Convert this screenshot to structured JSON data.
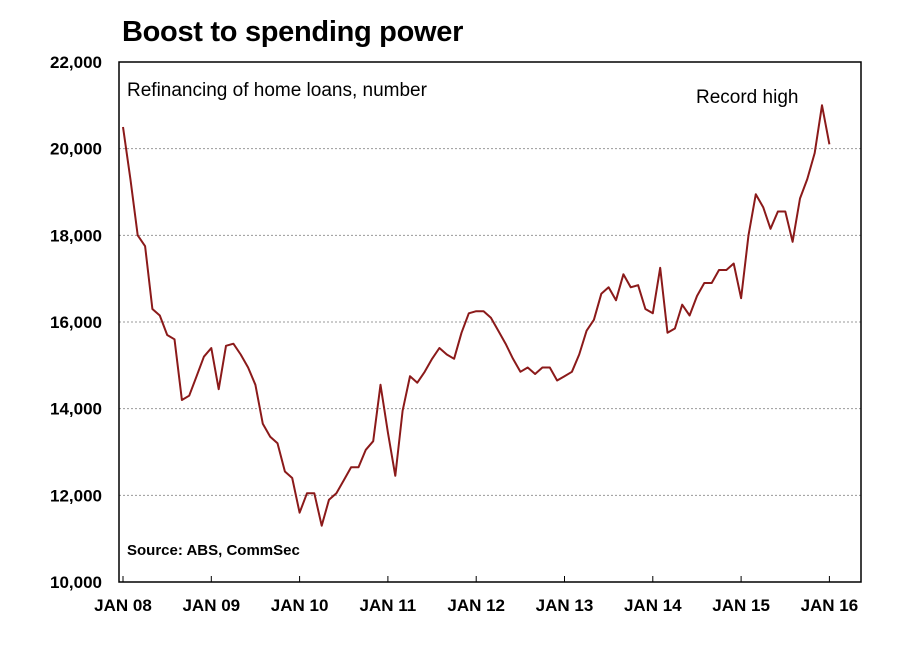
{
  "chart_data": {
    "type": "line",
    "title": "Boost to spending power",
    "subtitle": "Refinancing of home loans, number",
    "source": "Source: ABS, CommSec",
    "annotation": "Record high",
    "ylim": [
      10000,
      22000
    ],
    "yticks": [
      10000,
      12000,
      14000,
      16000,
      18000,
      20000,
      22000
    ],
    "ytick_labels": [
      "10,000",
      "12,000",
      "14,000",
      "16,000",
      "18,000",
      "20,000",
      "22,000"
    ],
    "xlim": [
      "2008-01",
      "2016-03"
    ],
    "xtick_labels": [
      "JAN 08",
      "JAN 09",
      "JAN 10",
      "JAN 11",
      "JAN 12",
      "JAN 13",
      "JAN 14",
      "JAN 15",
      "JAN 16"
    ],
    "grid": "horizontal dotted",
    "line_color": "#8b1a1a",
    "series": [
      {
        "values": [
          20500,
          19300,
          18000,
          17750,
          16300,
          16150,
          15700,
          15600,
          14200,
          14300,
          14750,
          15200,
          15400,
          14450,
          15450,
          15500,
          15250,
          14950,
          14550,
          13650,
          13350,
          13200,
          12550,
          12400,
          11600,
          12050,
          12050,
          11300,
          11900,
          12050,
          12350,
          12650,
          12650,
          13050,
          13250,
          14550,
          13450,
          12450,
          13950,
          14750,
          14600,
          14850,
          15150,
          15400,
          15250,
          15150,
          15750,
          16200,
          16250,
          16250,
          16100,
          15800,
          15500,
          15150,
          14850,
          14950,
          14800,
          14950,
          14950,
          14650,
          14750,
          14850,
          15250,
          15800,
          16050,
          16650,
          16800,
          16500,
          17100,
          16800,
          16850,
          16300,
          16200,
          17250,
          15750,
          15850,
          16400,
          16150,
          16600,
          16900,
          16900,
          17200,
          17200,
          17350,
          16550,
          18000,
          18950,
          18650,
          18150,
          18550,
          18550,
          17850,
          18850,
          19300,
          19900,
          21000,
          20100
        ]
      }
    ]
  }
}
